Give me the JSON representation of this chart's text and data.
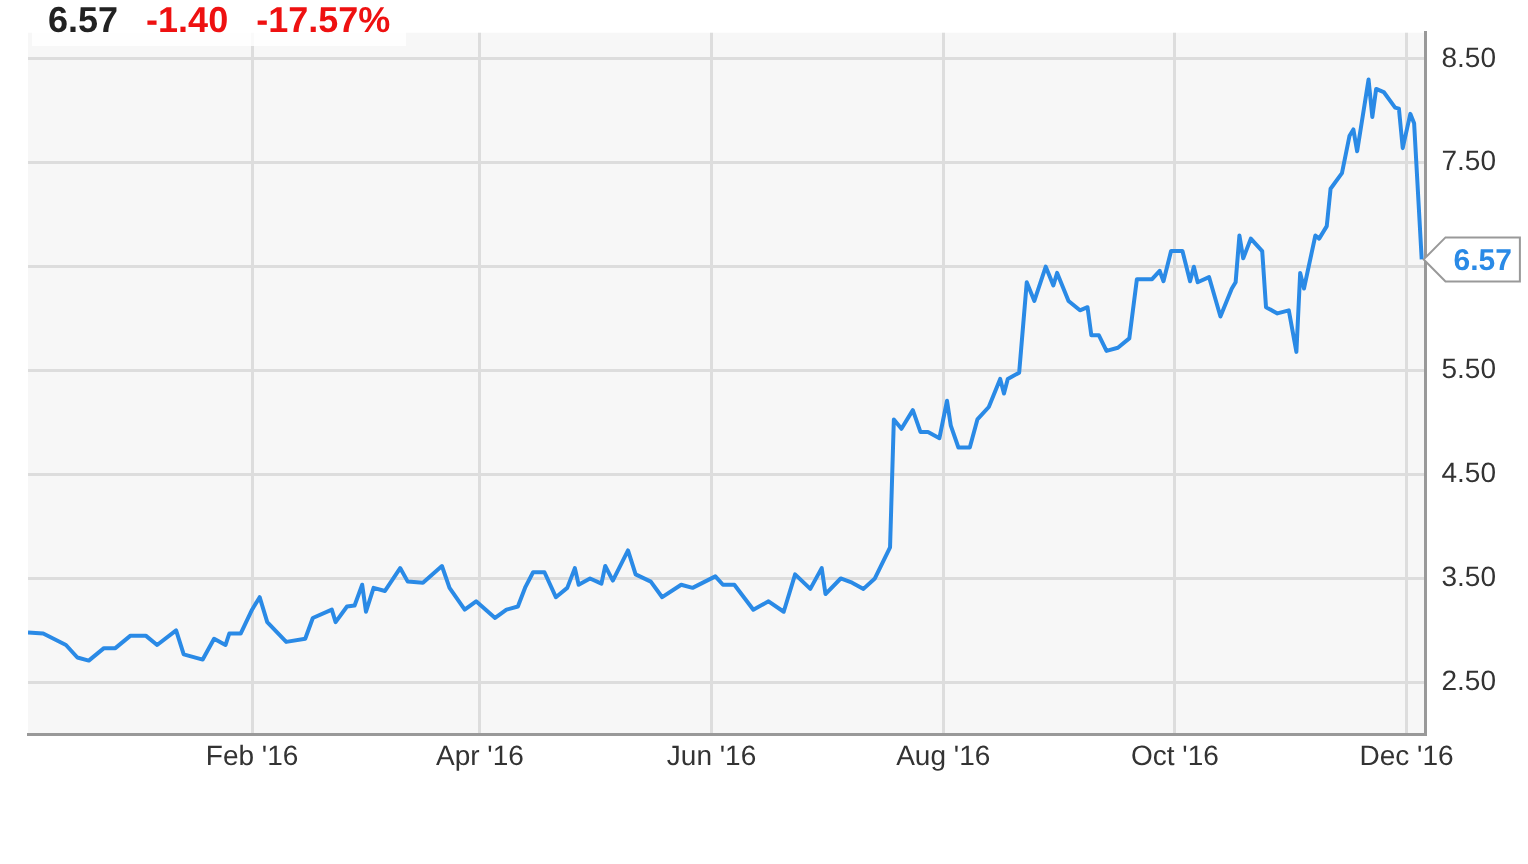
{
  "chart_data": {
    "type": "line",
    "title": "6.57",
    "annotations": [
      "-1.40",
      "-17.57%"
    ],
    "x": [
      "2015-12-04",
      "2015-12-08",
      "2015-12-14",
      "2015-12-17",
      "2015-12-20",
      "2015-12-24",
      "2015-12-27",
      "2015-12-31",
      "2016-01-04",
      "2016-01-07",
      "2016-01-12",
      "2016-01-14",
      "2016-01-19",
      "2016-01-22",
      "2016-01-25",
      "2016-01-26",
      "2016-01-29",
      "2016-02-01",
      "2016-02-03",
      "2016-02-05",
      "2016-02-10",
      "2016-02-15",
      "2016-02-17",
      "2016-02-22",
      "2016-02-23",
      "2016-02-26",
      "2016-02-28",
      "2016-03-01",
      "2016-03-02",
      "2016-03-04",
      "2016-03-07",
      "2016-03-11",
      "2016-03-13",
      "2016-03-17",
      "2016-03-22",
      "2016-03-24",
      "2016-03-28",
      "2016-03-31",
      "2016-04-05",
      "2016-04-08",
      "2016-04-11",
      "2016-04-13",
      "2016-04-15",
      "2016-04-18",
      "2016-04-21",
      "2016-04-24",
      "2016-04-26",
      "2016-04-27",
      "2016-04-30",
      "2016-05-03",
      "2016-05-04",
      "2016-05-06",
      "2016-05-10",
      "2016-05-12",
      "2016-05-16",
      "2016-05-19",
      "2016-05-24",
      "2016-05-27",
      "2016-06-02",
      "2016-06-04",
      "2016-06-07",
      "2016-06-12",
      "2016-06-16",
      "2016-06-20",
      "2016-06-23",
      "2016-06-27",
      "2016-06-30",
      "2016-07-01",
      "2016-07-05",
      "2016-07-08",
      "2016-07-11",
      "2016-07-14",
      "2016-07-18",
      "2016-07-19",
      "2016-07-21",
      "2016-07-24",
      "2016-07-26",
      "2016-07-28",
      "2016-07-31",
      "2016-08-02",
      "2016-08-03",
      "2016-08-05",
      "2016-08-08",
      "2016-08-10",
      "2016-08-13",
      "2016-08-16",
      "2016-08-17",
      "2016-08-18",
      "2016-08-21",
      "2016-08-23",
      "2016-08-25",
      "2016-08-28",
      "2016-08-30",
      "2016-08-31",
      "2016-09-03",
      "2016-09-06",
      "2016-09-08",
      "2016-09-09",
      "2016-09-11",
      "2016-09-13",
      "2016-09-16",
      "2016-09-19",
      "2016-09-21",
      "2016-09-25",
      "2016-09-27",
      "2016-09-28",
      "2016-09-30",
      "2016-10-03",
      "2016-10-05",
      "2016-10-06",
      "2016-10-07",
      "2016-10-10",
      "2016-10-13",
      "2016-10-16",
      "2016-10-17",
      "2016-10-18",
      "2016-10-19",
      "2016-10-21",
      "2016-10-24",
      "2016-10-25",
      "2016-10-28",
      "2016-10-31",
      "2016-11-02",
      "2016-11-03",
      "2016-11-04",
      "2016-11-07",
      "2016-11-08",
      "2016-11-10",
      "2016-11-11",
      "2016-11-14",
      "2016-11-16",
      "2016-11-17",
      "2016-11-18",
      "2016-11-21",
      "2016-11-22",
      "2016-11-23",
      "2016-11-25",
      "2016-11-28",
      "2016-11-29",
      "2016-11-30",
      "2016-12-02",
      "2016-12-03",
      "2016-12-05"
    ],
    "values": [
      2.98,
      2.97,
      2.86,
      2.74,
      2.71,
      2.83,
      2.83,
      2.95,
      2.95,
      2.86,
      3.0,
      2.77,
      2.72,
      2.92,
      2.86,
      2.97,
      2.97,
      3.2,
      3.32,
      3.08,
      2.89,
      2.92,
      3.12,
      3.2,
      3.08,
      3.23,
      3.24,
      3.44,
      3.18,
      3.41,
      3.38,
      3.6,
      3.47,
      3.46,
      3.62,
      3.41,
      3.2,
      3.28,
      3.12,
      3.2,
      3.23,
      3.42,
      3.56,
      3.56,
      3.32,
      3.41,
      3.6,
      3.44,
      3.5,
      3.45,
      3.62,
      3.48,
      3.77,
      3.54,
      3.47,
      3.32,
      3.44,
      3.41,
      3.52,
      3.44,
      3.44,
      3.2,
      3.28,
      3.18,
      3.54,
      3.4,
      3.6,
      3.35,
      3.5,
      3.46,
      3.4,
      3.5,
      3.8,
      5.03,
      4.94,
      5.12,
      4.91,
      4.91,
      4.85,
      5.21,
      4.97,
      4.76,
      4.76,
      5.03,
      5.15,
      5.42,
      5.28,
      5.42,
      5.48,
      6.35,
      6.17,
      6.5,
      6.32,
      6.44,
      6.17,
      6.08,
      6.11,
      5.84,
      5.84,
      5.69,
      5.72,
      5.81,
      6.38,
      6.38,
      6.46,
      6.36,
      6.65,
      6.65,
      6.36,
      6.5,
      6.35,
      6.4,
      6.02,
      6.29,
      6.35,
      6.8,
      6.58,
      6.77,
      6.65,
      6.11,
      6.05,
      6.08,
      5.68,
      6.44,
      6.29,
      6.8,
      6.77,
      6.89,
      7.25,
      7.4,
      7.76,
      7.82,
      7.61,
      8.3,
      7.94,
      8.21,
      8.18,
      8.03,
      8.02,
      7.64,
      7.97,
      7.88,
      6.57
    ],
    "value_labels": [
      null,
      null,
      null,
      null,
      null,
      null,
      null,
      null,
      null,
      null,
      null,
      null,
      null,
      null,
      null,
      null,
      null,
      null,
      null,
      null,
      null,
      null,
      null,
      null,
      null,
      null,
      null,
      null,
      null,
      null,
      null,
      null,
      null,
      null,
      null,
      null,
      null,
      null,
      null,
      null,
      null,
      null,
      null,
      null,
      null,
      null,
      null,
      null,
      null,
      null,
      null,
      null,
      null,
      null,
      null,
      null,
      null,
      null,
      null,
      null,
      null,
      null,
      null,
      null,
      null,
      null,
      null,
      null,
      null,
      null,
      null,
      null,
      null,
      null,
      null,
      null,
      null,
      null,
      null,
      null,
      null,
      null,
      null,
      null,
      null,
      null,
      null,
      null,
      null,
      null,
      null,
      null,
      null,
      null,
      null,
      null,
      null,
      null,
      null,
      null,
      null,
      null,
      null,
      null,
      null,
      null,
      null,
      null,
      null,
      null,
      null,
      null,
      null,
      null,
      null,
      null,
      null,
      null,
      null,
      null,
      null,
      null,
      null,
      null,
      null,
      null,
      null,
      null,
      null,
      null,
      null,
      null,
      null,
      null,
      null,
      null,
      null,
      null,
      null,
      null,
      null,
      null,
      "6.57"
    ],
    "color": "#2a8ae6",
    "xlim": [
      "2015-12-04",
      "2016-12-06"
    ],
    "xticks": [
      {
        "value": "2016-02-01",
        "label": "Feb '16"
      },
      {
        "value": "2016-04-01",
        "label": "Apr '16"
      },
      {
        "value": "2016-06-01",
        "label": "Jun '16"
      },
      {
        "value": "2016-08-01",
        "label": "Aug '16"
      },
      {
        "value": "2016-10-01",
        "label": "Oct '16"
      },
      {
        "value": "2016-12-01",
        "label": "Dec '16"
      }
    ],
    "ylim": [
      2.0,
      8.75
    ],
    "yticks": [
      {
        "value": 2.5,
        "label": "2.50"
      },
      {
        "value": 3.5,
        "label": "3.50"
      },
      {
        "value": 4.5,
        "label": "4.50"
      },
      {
        "value": 5.5,
        "label": "5.50"
      },
      {
        "value": 6.5,
        "label": null
      },
      {
        "value": 7.5,
        "label": "7.50"
      },
      {
        "value": 8.5,
        "label": "8.50"
      }
    ],
    "grid": true
  }
}
